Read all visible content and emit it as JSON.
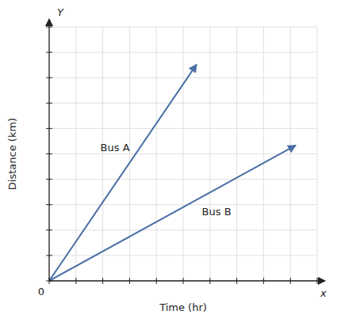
{
  "chart_data": {
    "type": "line",
    "title": "",
    "xlabel": "Time (hr)",
    "ylabel": "Distance (km)",
    "series": [
      {
        "name": "Bus A",
        "color": "#4a6fa5",
        "x": [
          0,
          5.5
        ],
        "values": [
          0,
          8.525
        ]
      },
      {
        "name": "Bus B",
        "color": "#4a6fa5",
        "x": [
          0,
          9.2
        ],
        "values": [
          0,
          5.336
        ]
      }
    ],
    "xlim": [
      0,
      10
    ],
    "ylim": [
      0,
      10
    ],
    "xticks": [
      0,
      1,
      2,
      3,
      4,
      5,
      6,
      7,
      8,
      9,
      10
    ],
    "yticks": [
      0,
      1,
      2,
      3,
      4,
      5,
      6,
      7,
      8,
      9,
      10
    ],
    "grid": true,
    "tick_labels": false,
    "annotations": [
      {
        "text": "0",
        "x": 0,
        "y": 0
      },
      {
        "text": "x",
        "x": 10,
        "y": 0
      },
      {
        "text": "Y",
        "x": 0,
        "y": 10
      }
    ]
  }
}
